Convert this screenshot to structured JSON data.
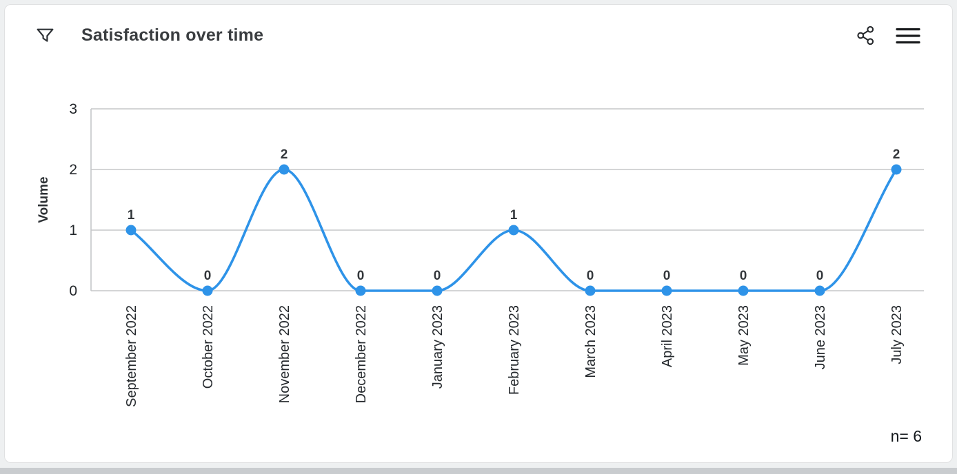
{
  "header": {
    "title": "Satisfaction over time",
    "icons": {
      "filter": "filter-icon",
      "share": "share-icon",
      "menu": "menu-icon"
    }
  },
  "chart_data": {
    "type": "line",
    "title": "Satisfaction over time",
    "categories": [
      "September 2022",
      "October 2022",
      "November 2022",
      "December 2022",
      "January 2023",
      "February 2023",
      "March 2023",
      "April 2023",
      "May 2023",
      "June 2023",
      "July 2023"
    ],
    "values": [
      1,
      0,
      2,
      0,
      0,
      1,
      0,
      0,
      0,
      0,
      2
    ],
    "xlabel": "",
    "ylabel": "Volume",
    "ylim": [
      0,
      3
    ],
    "yticks": [
      0,
      1,
      2,
      3
    ],
    "grid": true,
    "smooth": true,
    "show_point_labels": true,
    "legend_position": "none",
    "line_color": "#2e93e8",
    "marker": "circle"
  },
  "footer": {
    "sample_label": "n= 6"
  },
  "colors": {
    "accent": "#2e93e8",
    "grid": "#c5c7c9",
    "axis_text": "#23272b",
    "label_text": "#33373b",
    "card_bg": "#ffffff",
    "page_bg": "#eef0f1",
    "border": "#e0e1e2"
  }
}
